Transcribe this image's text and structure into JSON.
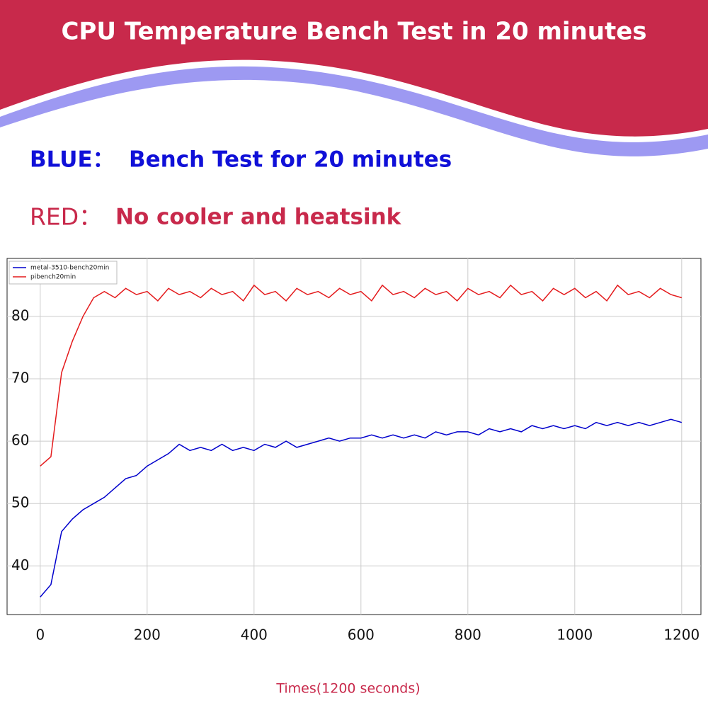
{
  "header": {
    "title": "CPU Temperature Bench Test in 20 minutes"
  },
  "notes": [
    {
      "label": "BLUE：",
      "text": "Bench Test for 20 minutes"
    },
    {
      "label": "RED：",
      "text": "No cooler and heatsink"
    }
  ],
  "chart_data": {
    "type": "line",
    "x_label": "Times(1200 seconds)",
    "x": [
      0,
      20,
      40,
      60,
      80,
      100,
      120,
      140,
      160,
      180,
      200,
      220,
      240,
      260,
      280,
      300,
      320,
      340,
      360,
      380,
      400,
      420,
      440,
      460,
      480,
      500,
      520,
      540,
      560,
      580,
      600,
      620,
      640,
      660,
      680,
      700,
      720,
      740,
      760,
      780,
      800,
      820,
      840,
      860,
      880,
      900,
      920,
      940,
      960,
      980,
      1000,
      1020,
      1040,
      1060,
      1080,
      1100,
      1120,
      1140,
      1160,
      1180,
      1200
    ],
    "series": [
      {
        "name": "metal-3510-bench20min",
        "color": "#0000cc",
        "values": [
          35,
          37,
          45.5,
          47.5,
          49,
          50,
          51,
          52.5,
          54,
          54.5,
          56,
          57,
          58,
          59.5,
          58.5,
          59,
          58.5,
          59.5,
          58.5,
          59,
          58.5,
          59.5,
          59,
          60,
          59,
          59.5,
          60,
          60.5,
          60,
          60.5,
          60.5,
          61,
          60.5,
          61,
          60.5,
          61,
          60.5,
          61.5,
          61,
          61.5,
          61.5,
          61,
          62,
          61.5,
          62,
          61.5,
          62.5,
          62,
          62.5,
          62,
          62.5,
          62,
          63,
          62.5,
          63,
          62.5,
          63,
          62.5,
          63,
          63.5,
          63
        ]
      },
      {
        "name": "pibench20min",
        "color": "#e41a1c",
        "values": [
          56,
          57.5,
          71,
          76,
          80,
          83,
          84,
          83,
          84.5,
          83.5,
          84,
          82.5,
          84.5,
          83.5,
          84,
          83,
          84.5,
          83.5,
          84,
          82.5,
          85,
          83.5,
          84,
          82.5,
          84.5,
          83.5,
          84,
          83,
          84.5,
          83.5,
          84,
          82.5,
          85,
          83.5,
          84,
          83,
          84.5,
          83.5,
          84,
          82.5,
          84.5,
          83.5,
          84,
          83,
          85,
          83.5,
          84,
          82.5,
          84.5,
          83.5,
          84.5,
          83,
          84,
          82.5,
          85,
          83.5,
          84,
          83,
          84.5,
          83.5,
          83
        ]
      }
    ],
    "xlim": [
      -62,
      1236
    ],
    "ylim": [
      32.2,
      89.3
    ],
    "xticks": [
      0,
      200,
      400,
      600,
      800,
      1000,
      1200
    ],
    "yticks": [
      40,
      50,
      60,
      70,
      80
    ],
    "grid": true,
    "legend": "upper left"
  }
}
